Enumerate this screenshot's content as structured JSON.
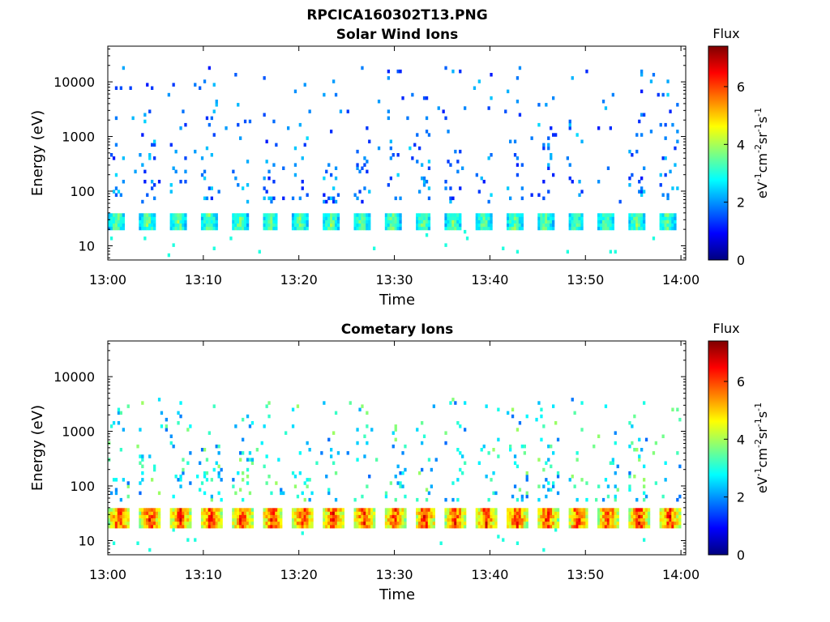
{
  "figure": {
    "title": "RPCICA160302T13.PNG"
  },
  "colormap": {
    "name": "jet",
    "stops": [
      "#00007f",
      "#0000ff",
      "#007fff",
      "#00ffff",
      "#7fff7f",
      "#ffff00",
      "#ff7f00",
      "#ff0000",
      "#7f0000"
    ]
  },
  "chart_data": [
    {
      "type": "heatmap",
      "title": "Solar Wind Ions",
      "xlabel": "Time",
      "ylabel": "Energy (eV)",
      "x_ticks": [
        "13:00",
        "13:10",
        "13:20",
        "13:30",
        "13:40",
        "13:50",
        "14:00"
      ],
      "xlim_minutes": [
        0,
        60.5
      ],
      "y_scale": "log",
      "ylim": [
        5.5,
        45000
      ],
      "y_ticks": [
        {
          "value": 10,
          "label": "10"
        },
        {
          "value": 100,
          "label": "100"
        },
        {
          "value": 1000,
          "label": "1000"
        },
        {
          "value": 10000,
          "label": "10000"
        }
      ],
      "colorbar": {
        "title": "Flux",
        "ticks": [
          "0",
          "2",
          "4",
          "6"
        ],
        "range": [
          0,
          7.4
        ]
      },
      "pattern": {
        "band_energy_eV": [
          20,
          42
        ],
        "band_flux": 3.8,
        "burst_period_min": 3.2,
        "burst_width_min": 1.7,
        "scatter_energy_eV": [
          60,
          20000
        ],
        "scatter_flux": 1.8,
        "seed": 7
      }
    },
    {
      "type": "heatmap",
      "title": "Cometary Ions",
      "xlabel": "Time",
      "ylabel": "Energy (eV)",
      "x_ticks": [
        "13:00",
        "13:10",
        "13:20",
        "13:30",
        "13:40",
        "13:50",
        "14:00"
      ],
      "xlim_minutes": [
        0,
        60.5
      ],
      "y_scale": "log",
      "ylim": [
        5.5,
        45000
      ],
      "y_ticks": [
        {
          "value": 10,
          "label": "10"
        },
        {
          "value": 100,
          "label": "100"
        },
        {
          "value": 1000,
          "label": "1000"
        },
        {
          "value": 10000,
          "label": "10000"
        }
      ],
      "colorbar": {
        "title": "Flux",
        "ticks": [
          "0",
          "2",
          "4",
          "6"
        ],
        "range": [
          0,
          7.4
        ]
      },
      "pattern": {
        "band_energy_eV": [
          17,
          42
        ],
        "band_flux": 6.4,
        "burst_period_min": 3.2,
        "burst_width_min": 2.2,
        "scatter_energy_eV": [
          50,
          4000
        ],
        "scatter_flux": 2.8,
        "seed": 13
      }
    }
  ]
}
